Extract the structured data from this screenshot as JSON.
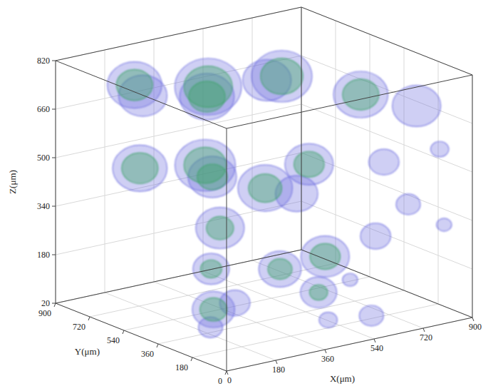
{
  "chart_data": {
    "type": "isosurface_3d",
    "x_label": "X(μm)",
    "y_label": "Y(μm)",
    "z_label": "Z(μm)",
    "xlim": [
      0,
      900
    ],
    "ylim": [
      0,
      900
    ],
    "zlim": [
      20,
      820
    ],
    "xticks": [
      0,
      180,
      360,
      540,
      720,
      900
    ],
    "yticks": [
      0,
      180,
      360,
      540,
      720,
      900
    ],
    "zticks": [
      20,
      180,
      340,
      500,
      660,
      820
    ],
    "grid": true,
    "series": [
      {
        "color": "#6a6ade",
        "values": [
          {
            "x": 150,
            "y": 700,
            "z": 760,
            "r": 90
          },
          {
            "x": 350,
            "y": 600,
            "z": 740,
            "r": 110
          },
          {
            "x": 550,
            "y": 500,
            "z": 760,
            "r": 100
          },
          {
            "x": 700,
            "y": 300,
            "z": 720,
            "r": 90
          },
          {
            "x": 800,
            "y": 150,
            "z": 700,
            "r": 80
          },
          {
            "x": 250,
            "y": 800,
            "z": 680,
            "r": 80
          },
          {
            "x": 450,
            "y": 750,
            "z": 650,
            "r": 90
          },
          {
            "x": 600,
            "y": 650,
            "z": 700,
            "r": 80
          },
          {
            "x": 100,
            "y": 600,
            "z": 520,
            "r": 90
          },
          {
            "x": 200,
            "y": 400,
            "z": 560,
            "r": 100
          },
          {
            "x": 350,
            "y": 300,
            "z": 480,
            "r": 90
          },
          {
            "x": 150,
            "y": 250,
            "z": 400,
            "r": 80
          },
          {
            "x": 500,
            "y": 350,
            "z": 420,
            "r": 70
          },
          {
            "x": 650,
            "y": 500,
            "z": 450,
            "r": 80
          },
          {
            "x": 400,
            "y": 650,
            "z": 420,
            "r": 80
          },
          {
            "x": 750,
            "y": 250,
            "z": 500,
            "r": 50
          },
          {
            "x": 850,
            "y": 100,
            "z": 560,
            "r": 30
          },
          {
            "x": 880,
            "y": 120,
            "z": 300,
            "r": 25
          },
          {
            "x": 300,
            "y": 150,
            "z": 260,
            "r": 70
          },
          {
            "x": 500,
            "y": 200,
            "z": 250,
            "r": 80
          },
          {
            "x": 650,
            "y": 150,
            "z": 300,
            "r": 50
          },
          {
            "x": 100,
            "y": 100,
            "z": 200,
            "r": 50
          },
          {
            "x": 700,
            "y": 50,
            "z": 420,
            "r": 40
          },
          {
            "x": 500,
            "y": 800,
            "z": 60,
            "r": 60
          },
          {
            "x": 300,
            "y": 500,
            "z": 40,
            "r": 70
          },
          {
            "x": 650,
            "y": 450,
            "z": 40,
            "r": 60
          },
          {
            "x": 600,
            "y": 100,
            "z": 60,
            "r": 40
          },
          {
            "x": 800,
            "y": 500,
            "z": 40,
            "r": 25
          },
          {
            "x": 150,
            "y": 300,
            "z": 60,
            "r": 40
          },
          {
            "x": 400,
            "y": 40,
            "z": 100,
            "r": 30
          }
        ]
      },
      {
        "color": "#3da36a",
        "values": [
          {
            "x": 150,
            "y": 700,
            "z": 760,
            "r": 60
          },
          {
            "x": 350,
            "y": 600,
            "z": 740,
            "r": 80
          },
          {
            "x": 550,
            "y": 500,
            "z": 760,
            "r": 70
          },
          {
            "x": 700,
            "y": 300,
            "z": 720,
            "r": 60
          },
          {
            "x": 450,
            "y": 750,
            "z": 650,
            "r": 60
          },
          {
            "x": 200,
            "y": 400,
            "z": 560,
            "r": 70
          },
          {
            "x": 100,
            "y": 600,
            "z": 520,
            "r": 60
          },
          {
            "x": 350,
            "y": 300,
            "z": 480,
            "r": 55
          },
          {
            "x": 400,
            "y": 650,
            "z": 420,
            "r": 50
          },
          {
            "x": 650,
            "y": 500,
            "z": 450,
            "r": 50
          },
          {
            "x": 300,
            "y": 150,
            "z": 260,
            "r": 40
          },
          {
            "x": 500,
            "y": 200,
            "z": 250,
            "r": 50
          },
          {
            "x": 500,
            "y": 800,
            "z": 60,
            "r": 35
          },
          {
            "x": 300,
            "y": 500,
            "z": 40,
            "r": 45
          },
          {
            "x": 650,
            "y": 450,
            "z": 40,
            "r": 30
          },
          {
            "x": 150,
            "y": 250,
            "z": 400,
            "r": 45
          }
        ]
      }
    ]
  }
}
